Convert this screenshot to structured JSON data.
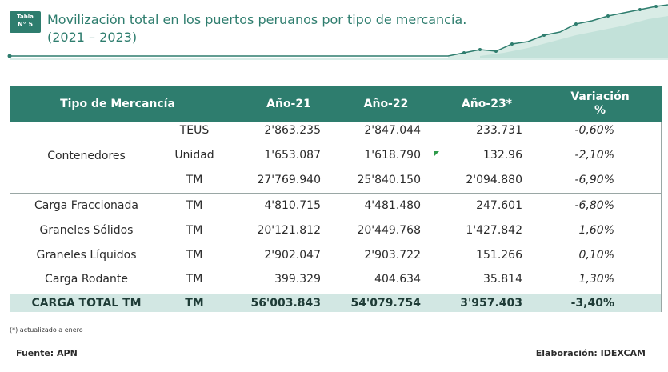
{
  "header": {
    "badge_line1": "Tabla",
    "badge_line2": "N° 5",
    "title_line1": "Movilización total en los puertos peruanos por tipo de mercancía.",
    "title_line2": "(2021 – 2023)",
    "accent_color": "#2e7d6e"
  },
  "table": {
    "columns": [
      "Tipo de Mercancía",
      "Año-21",
      "Año-22",
      "Año-23*",
      "Variación",
      "%"
    ],
    "group": {
      "label": "Contenedores",
      "rows": [
        {
          "unit": "TEUS",
          "y21": "2'863.235",
          "y22": "2'847.044",
          "y23": "233.731",
          "var": "-0,60%"
        },
        {
          "unit": "Unidad",
          "y21": "1'653.087",
          "y22": "1'618.790",
          "y23": "132.96",
          "var": "-2,10%"
        },
        {
          "unit": "TM",
          "y21": "27'769.940",
          "y22": "25'840.150",
          "y23": "2'094.880",
          "var": "-6,90%"
        }
      ]
    },
    "rows": [
      {
        "type": "Carga Fraccionada",
        "unit": "TM",
        "y21": "4'810.715",
        "y22": "4'481.480",
        "y23": "247.601",
        "var": "-6,80%"
      },
      {
        "type": "Graneles Sólidos",
        "unit": "TM",
        "y21": "20'121.812",
        "y22": "20'449.768",
        "y23": "1'427.842",
        "var": "1,60%"
      },
      {
        "type": "Graneles Líquidos",
        "unit": "TM",
        "y21": "2'902.047",
        "y22": "2'903.722",
        "y23": "151.266",
        "var": "0,10%"
      },
      {
        "type": "Carga Rodante",
        "unit": "TM",
        "y21": "399.329",
        "y22": "404.634",
        "y23": "35.814",
        "var": "1,30%"
      }
    ],
    "total": {
      "type": "CARGA TOTAL TM",
      "unit": "TM",
      "y21": "56'003.843",
      "y22": "54'079.754",
      "y23": "3'957.403",
      "var": "-3,40%"
    },
    "total_bg": "#d2e7e3"
  },
  "footer": {
    "note": "(*) actualizado a enero",
    "source": "Fuente: APN",
    "credit": "Elaboración: IDEXCAM"
  }
}
